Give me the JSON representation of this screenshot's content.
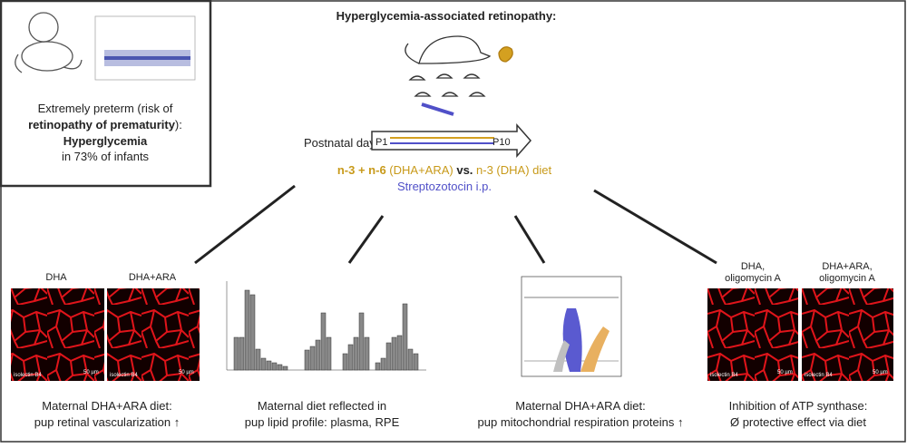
{
  "preterm_box": {
    "line1": "Extremely preterm (risk of",
    "line2_bold": "retinopathy of prematurity",
    "line2_rest": "):",
    "line3": "Hyperglycemia",
    "line4": "in 73% of infants"
  },
  "model": {
    "title": "Hyperglycemia-associated retinopathy:",
    "postnatal": "Postnatal day",
    "start": "P1",
    "end": "P10",
    "diet": [
      "n-3 + n-6",
      " (DHA+ARA) ",
      "vs.",
      " n-3 (DHA) diet"
    ],
    "injection": "Streptozotocin i.p."
  },
  "panels": [
    {
      "labels": [
        "DHA",
        "DHA+ARA"
      ],
      "stain": "isolectin B4",
      "scale": "50 µm",
      "caption": [
        "Maternal DHA+ARA diet:",
        "pup retinal vascularization ↑"
      ]
    },
    {
      "caption": [
        "Maternal diet reflected in",
        "pup lipid profile: plasma, RPE"
      ]
    },
    {
      "caption": [
        "Maternal DHA+ARA diet:",
        "pup mitochondrial respiration proteins ↑"
      ]
    },
    {
      "labels": [
        "DHA,",
        "oligomycin A",
        "DHA+ARA,",
        "oligomycin A"
      ],
      "stain": "isolectin B4",
      "scale": "50 µm",
      "caption": [
        "Inhibition of ATP synthase:",
        "Ø protective effect via diet"
      ]
    }
  ]
}
